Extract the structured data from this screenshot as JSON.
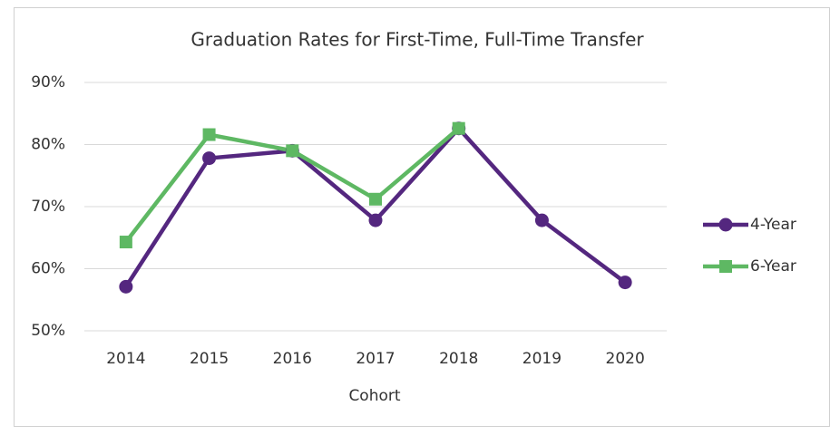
{
  "chart_data": {
    "type": "line",
    "title": "Graduation Rates for First-Time, Full-Time Transfer",
    "x_label": "Cohort",
    "categories": [
      "2014",
      "2015",
      "2016",
      "2017",
      "2018",
      "2019",
      "2020"
    ],
    "series": [
      {
        "name": "4-Year",
        "color": "#54277f",
        "marker": "circle",
        "values": [
          57.1,
          77.8,
          79,
          67.8,
          82.6,
          67.8,
          57.8
        ]
      },
      {
        "name": "6-Year",
        "color": "#5eb863",
        "marker": "square",
        "values": [
          64.3,
          81.6,
          79,
          71.2,
          82.6,
          null,
          null
        ]
      }
    ],
    "ylim": [
      50,
      90
    ],
    "yticks": [
      {
        "value": 50,
        "label": "50%"
      },
      {
        "value": 60,
        "label": "60%"
      },
      {
        "value": 70,
        "label": "70%"
      },
      {
        "value": 80,
        "label": "80%"
      },
      {
        "value": 90,
        "label": "90%"
      }
    ],
    "grid": true,
    "legend": "right"
  }
}
